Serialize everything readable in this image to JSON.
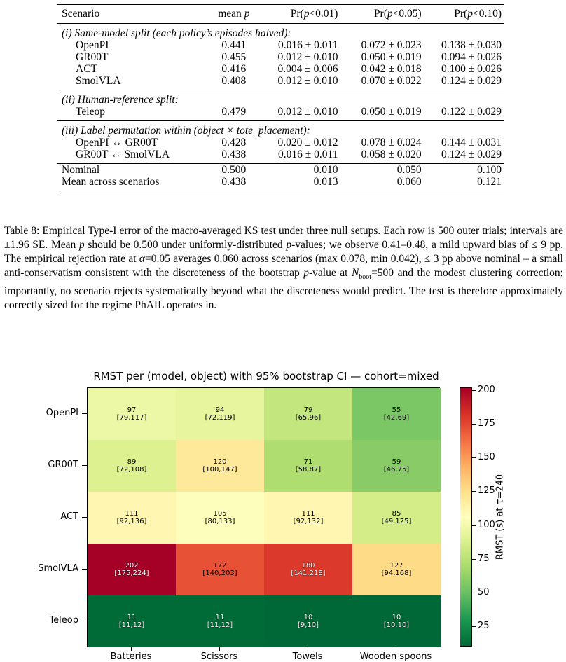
{
  "table": {
    "header": [
      "Scenario",
      "mean p",
      "Pr(p<0.01)",
      "Pr(p<0.05)",
      "Pr(p<0.10)"
    ],
    "sections": [
      {
        "title": "(i) Same-model split (each policy’s episodes halved):",
        "rows": [
          [
            "OpenPI",
            "0.441",
            "0.016 ± 0.011",
            "0.072 ± 0.023",
            "0.138 ± 0.030"
          ],
          [
            "GR00T",
            "0.455",
            "0.012 ± 0.010",
            "0.050 ± 0.019",
            "0.094 ± 0.026"
          ],
          [
            "ACT",
            "0.416",
            "0.004 ± 0.006",
            "0.042 ± 0.018",
            "0.100 ± 0.026"
          ],
          [
            "SmolVLA",
            "0.408",
            "0.012 ± 0.010",
            "0.070 ± 0.022",
            "0.124 ± 0.029"
          ]
        ]
      },
      {
        "title": "(ii) Human-reference split:",
        "rows": [
          [
            "Teleop",
            "0.479",
            "0.012 ± 0.010",
            "0.050 ± 0.019",
            "0.122 ± 0.029"
          ]
        ]
      },
      {
        "title": "(iii) Label permutation within (object × tote_placement):",
        "rows": [
          [
            "OpenPI ↔ GR00T",
            "0.428",
            "0.020 ± 0.012",
            "0.078 ± 0.024",
            "0.144 ± 0.031"
          ],
          [
            "GR00T ↔ SmolVLA",
            "0.438",
            "0.016 ± 0.011",
            "0.058 ± 0.020",
            "0.124 ± 0.029"
          ]
        ]
      }
    ],
    "footer_rows": [
      [
        "Nominal",
        "0.500",
        "0.010",
        "0.050",
        "0.100"
      ],
      [
        "Mean across scenarios",
        "0.438",
        "0.013",
        "0.060",
        "0.121"
      ]
    ]
  },
  "caption": "Table 8: Empirical Type-I error of the macro-averaged KS test under three null setups. Each row is 500 outer trials; intervals are ±1.96 SE. Mean p should be 0.500 under uniformly-distributed p-values; we observe 0.41–0.48, a mild upward bias of ≤ 9 pp. The empirical rejection rate at α=0.05 averages 0.060 across scenarios (max 0.078, min 0.042), ≤ 3 pp above nominal – a small anti-conservatism consistent with the discreteness of the bootstrap p-value at Nboot=500 and the modest clustering correction; importantly, no scenario rejects systematically beyond what the discreteness would predict. The test is therefore approximately correctly sized for the regime PhAIL operates in.",
  "chart_data": {
    "type": "heatmap",
    "title": "RMST per (model, object) with 95% bootstrap CI — cohort=mixed",
    "rows": [
      "OpenPI",
      "GR00T",
      "ACT",
      "SmolVLA",
      "Teleop"
    ],
    "columns": [
      "Batteries",
      "Scissors",
      "Towels",
      "Wooden spoons"
    ],
    "values": [
      [
        97,
        94,
        79,
        55
      ],
      [
        89,
        120,
        71,
        59
      ],
      [
        111,
        105,
        111,
        85
      ],
      [
        202,
        172,
        180,
        127
      ],
      [
        11,
        11,
        10,
        10
      ]
    ],
    "ci": [
      [
        "[79,117]",
        "[72,119]",
        "[65,96]",
        "[42,69]"
      ],
      [
        "[72,108]",
        "[100,147]",
        "[58,87]",
        "[46,75]"
      ],
      [
        "[92,136]",
        "[80,133]",
        "[92,132]",
        "[49,125]"
      ],
      [
        "[175,224]",
        "[140,203]",
        "[141,218]",
        "[94,168]"
      ],
      [
        "[11,12]",
        "[11,12]",
        "[9,10]",
        "[10,10]"
      ]
    ],
    "colorbar": {
      "label": "RMST (s) at τ=240",
      "range": [
        10,
        202
      ],
      "ticks": [
        25,
        50,
        75,
        100,
        125,
        150,
        175,
        200
      ],
      "colormap": "RdYlGn_r"
    }
  }
}
